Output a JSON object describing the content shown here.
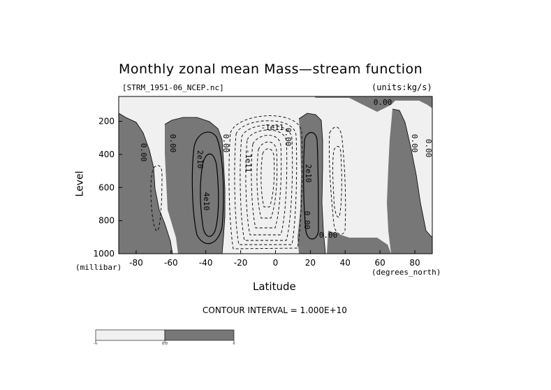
{
  "chart_data": {
    "type": "contour",
    "title": "Monthly zonal mean Mass—stream function",
    "file_label": "[STRM_1951-06_NCEP.nc]",
    "units_label": "(units:kg/s)",
    "xlabel": "Latitude",
    "x_units": "(degrees_north)",
    "ylabel": "Level",
    "y_units": "(millibar)",
    "xlim": [
      -90,
      90
    ],
    "ylim": [
      1000,
      50
    ],
    "y_inverted": true,
    "x_ticks": [
      "-80",
      "-60",
      "-40",
      "-20",
      "0",
      "20",
      "40",
      "60",
      "80"
    ],
    "x_tick_values": [
      -80,
      -60,
      -40,
      -20,
      0,
      20,
      40,
      60,
      80
    ],
    "y_ticks": [
      "200",
      "400",
      "600",
      "800",
      "1000"
    ],
    "y_tick_values": [
      200,
      400,
      600,
      800,
      1000
    ],
    "contour_interval_text": "CONTOUR INTERVAL = 1.000E+10",
    "contour_interval": 10000000000.0,
    "contour_labels": [
      "0.00",
      "0.00",
      "0.00",
      "0.00",
      "0.00",
      "0.00",
      "0.00",
      "0.00",
      "0.00",
      "2e10",
      "4e10",
      "-1e11",
      "2e10",
      "-1e11"
    ],
    "shading": [
      {
        "range": "negative",
        "color": "#f0f0f0"
      },
      {
        "range": "positive",
        "color": "#777777"
      }
    ],
    "colorbar_labels": [
      "-∞",
      "0.0",
      "∞"
    ],
    "colors": {
      "negative_fill": "#f0f0f0",
      "positive_fill": "#777777",
      "line": "#000000"
    }
  }
}
